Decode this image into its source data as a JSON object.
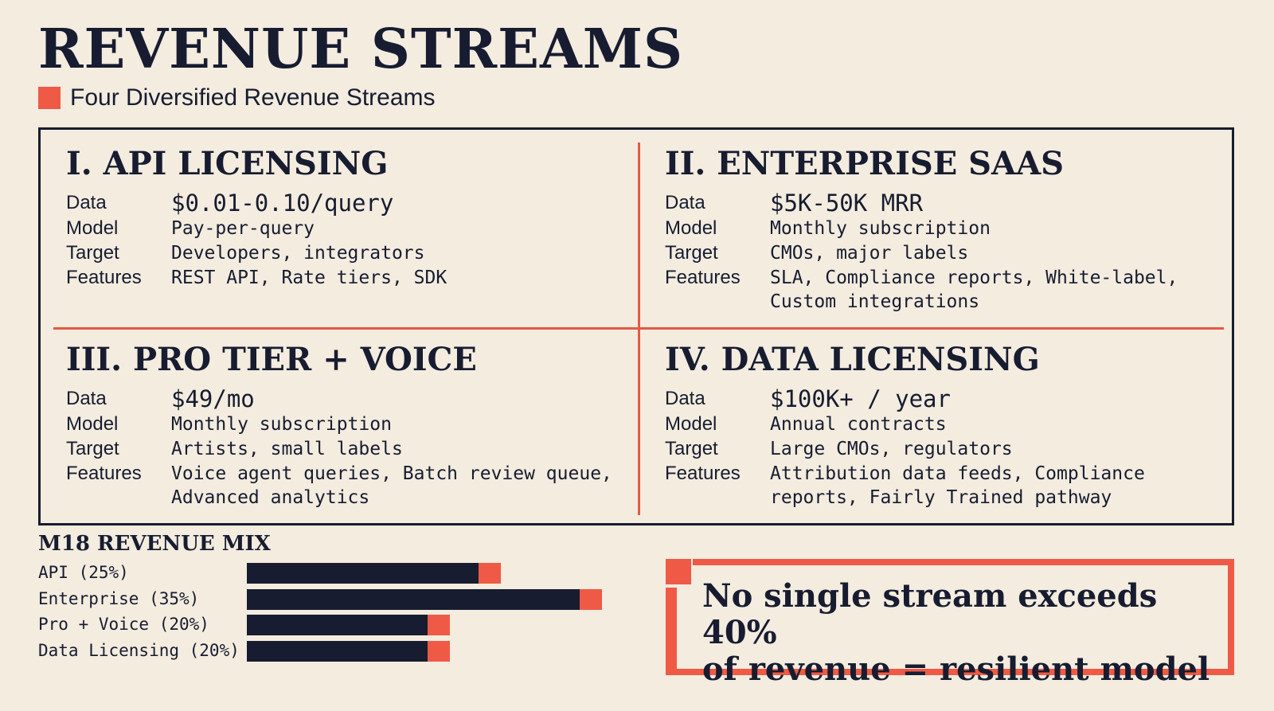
{
  "header": {
    "title": "REVENUE STREAMS",
    "subtitle": "Four Diversified Revenue Streams"
  },
  "streams": [
    {
      "heading": "I. API LICENSING",
      "labels": [
        "Data",
        "Model",
        "Target",
        "Features"
      ],
      "data": "$0.01-0.10/query",
      "model": "Pay-per-query",
      "target": "Developers, integrators",
      "features": [
        "REST API, Rate tiers, SDK"
      ]
    },
    {
      "heading": "II. ENTERPRISE SAAS",
      "labels": [
        "Data",
        "Model",
        "Target",
        "Features"
      ],
      "data": "$5K-50K MRR",
      "model": "Monthly subscription",
      "target": "CMOs, major labels",
      "features": [
        "SLA, Compliance reports, White-label,",
        "Custom integrations"
      ]
    },
    {
      "heading": "III. PRO TIER + VOICE",
      "labels": [
        "Data",
        "Model",
        "Target",
        "Features"
      ],
      "data": "$49/mo",
      "model": "Monthly subscription",
      "target": "Artists, small labels",
      "features": [
        "Voice agent queries, Batch review queue,",
        "Advanced analytics"
      ]
    },
    {
      "heading": "IV. DATA LICENSING",
      "labels": [
        "Data",
        "Model",
        "Target",
        "Features"
      ],
      "data": "$100K+ / year",
      "model": "Annual contracts",
      "target": "Large CMOs, regulators",
      "features": [
        "Attribution data feeds, Compliance",
        "reports, Fairly Trained pathway"
      ]
    }
  ],
  "chart_data": {
    "type": "bar",
    "title": "M18 REVENUE MIX",
    "categories": [
      "API (25%)",
      "Enterprise (35%)",
      "Pro + Voice (20%)",
      "Data Licensing (20%)"
    ],
    "values": [
      25,
      35,
      20,
      20
    ],
    "orientation": "horizontal",
    "colors": {
      "bar": "#171c30",
      "accent": "#ee5a46"
    }
  },
  "callout": {
    "lines": [
      "No single stream exceeds 40%",
      "of revenue = resilient model"
    ]
  },
  "colors": {
    "background": "#f3ecdf",
    "ink": "#171c30",
    "accent": "#ee5a46"
  }
}
